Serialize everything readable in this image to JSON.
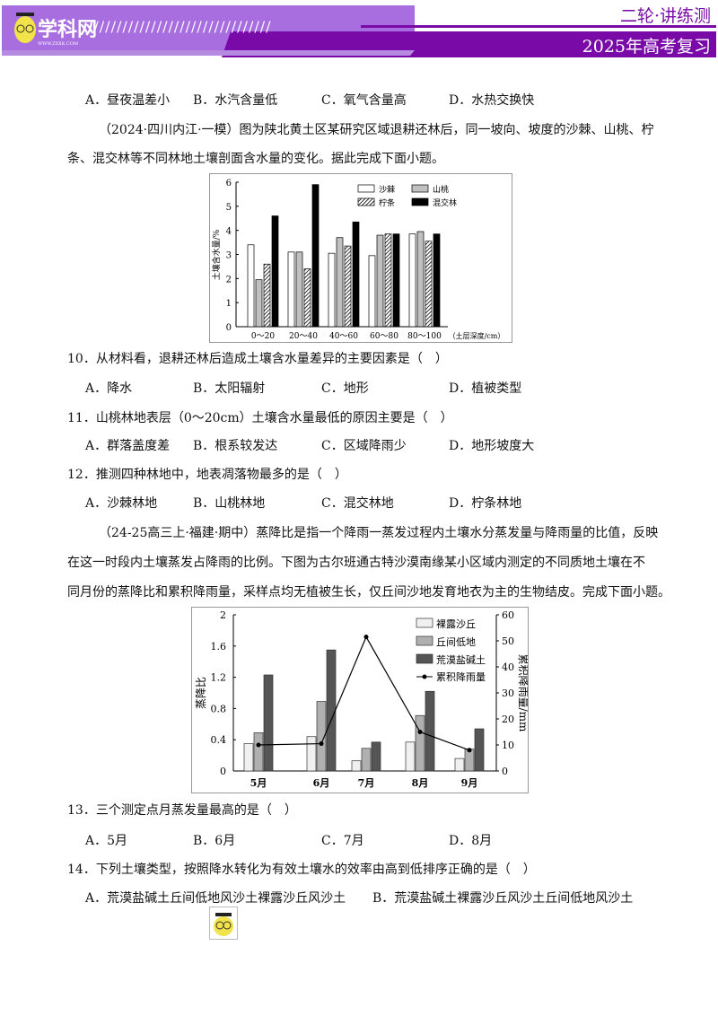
{
  "header": {
    "logo_text": "学科网",
    "logo_url_text": "WWW.ZXXK.COM",
    "title_top": "二轮·讲练测",
    "title_bottom": "2025年高考复习",
    "purple": "#7a0aa8",
    "light_purple": "#a86ee0"
  },
  "q9_options": [
    "A．昼夜温差小",
    "B．水汽含量低",
    "C．氧气含量高",
    "D．水热交换快"
  ],
  "passage1": {
    "line1": "（2024·四川内江·一模）图为陕北黄土区某研究区域退耕还林后，同一坡向、坡度的沙棘、山桃、柠",
    "line2": "条、混交林等不同林地土壤剖面含水量的变化。据此完成下面小题。"
  },
  "q10": {
    "stem": "10．从材料看，退耕还林后造成土壤含水量差异的主要因素是（　）",
    "options": [
      "A．降水",
      "B．太阳辐射",
      "C．地形",
      "D．植被类型"
    ]
  },
  "q11": {
    "stem": "11．山桃林地表层（0～20cm）土壤含水量最低的原因主要是（　）",
    "options": [
      "A．群落盖度差",
      "B．根系较发达",
      "C．区域降雨少",
      "D．地形坡度大"
    ]
  },
  "q12": {
    "stem": "12．推测四种林地中，地表凋落物最多的是（　）",
    "options": [
      "A．沙棘林地",
      "B．山桃林地",
      "C．混交林地",
      "D．柠条林地"
    ]
  },
  "passage2": {
    "line1": "（24-25高三上·福建·期中）蒸降比是指一个降雨一蒸发过程内土壤水分蒸发量与降雨量的比值，反映",
    "line2": "在这一时段内土壤蒸发占降雨的比例。下图为古尔班通古特沙漠南缘某小区域内测定的不同质地土壤在不",
    "line3": "同月份的蒸降比和累积降雨量，采样点均无植被生长，仅丘间沙地发育地衣为主的生物结皮。完成下面小题。"
  },
  "q13": {
    "stem": "13．三个测定点月蒸发量最高的是（　）",
    "options": [
      "A．5月",
      "B．6月",
      "C．7月",
      "D．8月"
    ]
  },
  "q14": {
    "stem": "14．下列土壤类型，按照降水转化为有效土壤水的效率由高到低排序正确的是（　）",
    "options": [
      "A．荒漠盐碱土丘间低地风沙土裸露沙丘风沙土",
      "B．荒漠盐碱土裸露沙丘风沙土丘间低地风沙土"
    ]
  },
  "chart_data": [
    {
      "type": "bar",
      "ylabel": "土壤含水量/%",
      "xlabel": "（土层深度/cm）",
      "ylim": [
        0,
        6
      ],
      "yticks": [
        0,
        1,
        2,
        3,
        4,
        5,
        6
      ],
      "categories": [
        "0～20",
        "20～40",
        "40～60",
        "60～80",
        "80～100"
      ],
      "legend": "top-right",
      "series": [
        {
          "name": "沙棘",
          "values": [
            3.4,
            3.1,
            3.05,
            2.95,
            3.85
          ],
          "fill": "#ffffff"
        },
        {
          "name": "山桃",
          "values": [
            1.95,
            3.1,
            3.7,
            3.8,
            3.95
          ],
          "fill": "#c0c0c0"
        },
        {
          "name": "柠条",
          "values": [
            2.6,
            2.4,
            3.35,
            3.85,
            3.55
          ],
          "fill": "hatch"
        },
        {
          "name": "混交林",
          "values": [
            4.6,
            5.9,
            4.35,
            3.85,
            3.85
          ],
          "fill": "#000000"
        }
      ]
    },
    {
      "type": "bar+line",
      "ylabel": "蒸降比",
      "y2label": "累积降雨量/mm",
      "ylim": [
        0,
        2
      ],
      "y2lim": [
        0,
        60
      ],
      "yticks": [
        "0",
        "0.4",
        "0.8",
        "1.2",
        "1.6",
        "2"
      ],
      "y2ticks": [
        "0",
        "10",
        "20",
        "30",
        "40",
        "50",
        "60"
      ],
      "categories": [
        "5月",
        "6月",
        "7月",
        "8月",
        "9月"
      ],
      "legend": "top-right",
      "series": [
        {
          "name": "裸露沙丘",
          "values": [
            0.35,
            0.44,
            0.13,
            0.37,
            0.16
          ],
          "fill": "#f0f0f0"
        },
        {
          "name": "丘间低地",
          "values": [
            0.49,
            0.89,
            0.29,
            0.71,
            0.28
          ],
          "fill": "#b0b0b0"
        },
        {
          "name": "荒漠盐碱土",
          "values": [
            1.23,
            1.55,
            0.37,
            1.02,
            0.54
          ],
          "fill": "#555555"
        },
        {
          "name": "累积降雨量",
          "type": "line",
          "axis": "right",
          "values": [
            10,
            10.5,
            51.5,
            15,
            8
          ]
        }
      ]
    }
  ]
}
